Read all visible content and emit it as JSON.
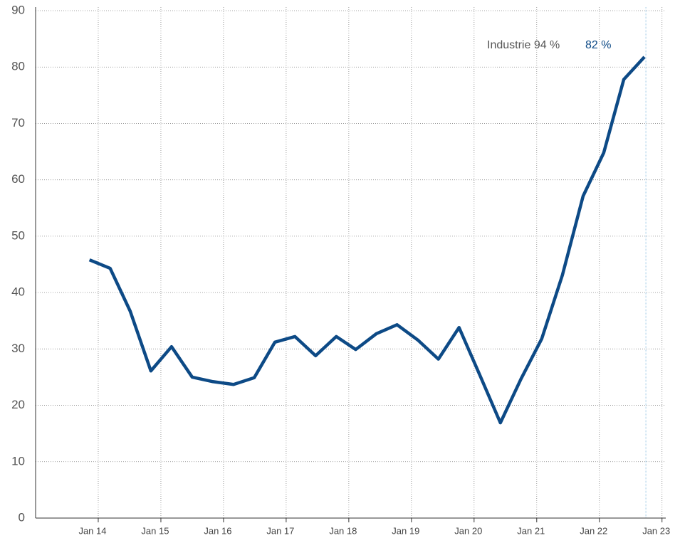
{
  "chart_data": {
    "type": "line",
    "annotations": [
      "Industrie 94 %",
      "82 %"
    ],
    "x": [
      2013.86,
      2014.19,
      2014.51,
      2014.84,
      2015.17,
      2015.5,
      2015.83,
      2016.16,
      2016.49,
      2016.82,
      2017.14,
      2017.47,
      2017.8,
      2018.11,
      2018.44,
      2018.77,
      2019.1,
      2019.43,
      2019.76,
      2020.09,
      2020.42,
      2020.75,
      2021.08,
      2021.41,
      2021.74,
      2022.07,
      2022.39,
      2022.72
    ],
    "series": [
      {
        "name": "Industrie",
        "color": "#0d4a86",
        "values": [
          45.8,
          44.3,
          36.7,
          26.1,
          30.4,
          25.0,
          24.2,
          23.7,
          24.9,
          31.2,
          32.2,
          28.8,
          32.2,
          29.9,
          32.7,
          34.3,
          31.6,
          28.2,
          33.8,
          25.4,
          16.9,
          24.7,
          31.8,
          43.1,
          57.1,
          64.8,
          77.8,
          81.8
        ]
      }
    ],
    "xlim": [
      2013.0,
      2023.06
    ],
    "xticks": [
      {
        "value": 2014,
        "label": "Jan 14"
      },
      {
        "value": 2015,
        "label": "Jan 15"
      },
      {
        "value": 2016,
        "label": "Jan 16"
      },
      {
        "value": 2017,
        "label": "Jan 17"
      },
      {
        "value": 2018,
        "label": "Jan 18"
      },
      {
        "value": 2019,
        "label": "Jan 19"
      },
      {
        "value": 2020,
        "label": "Jan 20"
      },
      {
        "value": 2021,
        "label": "Jan 21"
      },
      {
        "value": 2022,
        "label": "Jan 22"
      },
      {
        "value": 2023,
        "label": "Jan 23"
      }
    ],
    "ylim": [
      0,
      90
    ],
    "yticks": [
      0,
      10,
      20,
      30,
      40,
      50,
      60,
      70,
      80,
      90
    ],
    "grid": true
  }
}
